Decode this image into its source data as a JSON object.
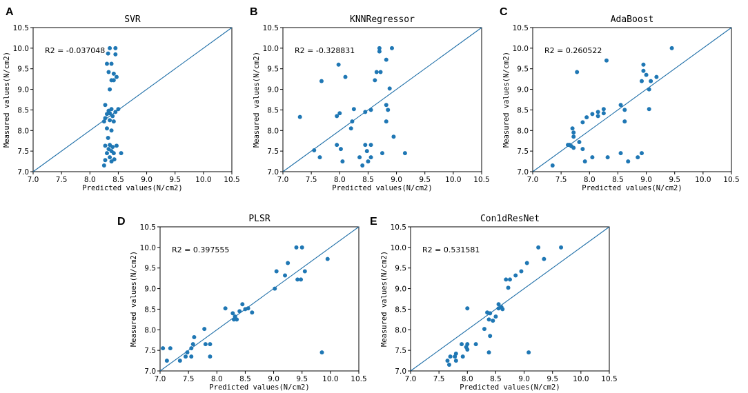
{
  "chart_data": [
    {
      "panel": "A",
      "type": "scatter",
      "title": "SVR",
      "xlabel": "Predicted values(N/cm2)",
      "ylabel": "Measured values(N/cm2)",
      "annotation": "R2 = -0.037048",
      "xlim": [
        7.0,
        10.5
      ],
      "ylim": [
        7.0,
        10.5
      ],
      "xticks": [
        "7.0",
        "7.5",
        "8.0",
        "8.5",
        "9.0",
        "9.5",
        "10.0",
        "10.5"
      ],
      "yticks": [
        "7.0",
        "7.5",
        "8.0",
        "8.5",
        "9.0",
        "9.5",
        "10.0",
        "10.5"
      ],
      "reference_line": "y = x",
      "points": [
        [
          8.35,
          10.0
        ],
        [
          8.45,
          10.0
        ],
        [
          8.32,
          9.87
        ],
        [
          8.45,
          9.85
        ],
        [
          8.3,
          9.62
        ],
        [
          8.38,
          9.62
        ],
        [
          8.33,
          9.42
        ],
        [
          8.42,
          9.38
        ],
        [
          8.47,
          9.3
        ],
        [
          8.38,
          9.22
        ],
        [
          8.42,
          9.22
        ],
        [
          8.35,
          9.0
        ],
        [
          8.27,
          8.62
        ],
        [
          8.38,
          8.52
        ],
        [
          8.33,
          8.48
        ],
        [
          8.45,
          8.45
        ],
        [
          8.5,
          8.52
        ],
        [
          8.3,
          8.4
        ],
        [
          8.35,
          8.42
        ],
        [
          8.4,
          8.35
        ],
        [
          8.27,
          8.3
        ],
        [
          8.35,
          8.25
        ],
        [
          8.42,
          8.22
        ],
        [
          8.25,
          8.22
        ],
        [
          8.3,
          8.05
        ],
        [
          8.38,
          8.0
        ],
        [
          8.32,
          7.82
        ],
        [
          8.35,
          7.65
        ],
        [
          8.27,
          7.63
        ],
        [
          8.4,
          7.6
        ],
        [
          8.47,
          7.63
        ],
        [
          8.33,
          7.55
        ],
        [
          8.38,
          7.5
        ],
        [
          8.3,
          7.45
        ],
        [
          8.42,
          7.45
        ],
        [
          8.55,
          7.45
        ],
        [
          8.35,
          7.35
        ],
        [
          8.43,
          7.3
        ],
        [
          8.27,
          7.28
        ],
        [
          8.38,
          7.25
        ],
        [
          8.25,
          7.15
        ]
      ]
    },
    {
      "panel": "B",
      "type": "scatter",
      "title": "KNNRegressor",
      "xlabel": "Predicted values(N/cm2)",
      "ylabel": "Measured values(N/cm2)",
      "annotation": "R2 = -0.328831",
      "xlim": [
        7.0,
        10.5
      ],
      "ylim": [
        7.0,
        10.5
      ],
      "xticks": [
        "7.0",
        "7.5",
        "8.0",
        "8.5",
        "9.0",
        "9.5",
        "10.0",
        "10.5"
      ],
      "yticks": [
        "7.0",
        "7.5",
        "8.0",
        "8.5",
        "9.0",
        "9.5",
        "10.0",
        "10.5"
      ],
      "reference_line": "y = x",
      "points": [
        [
          8.7,
          10.0
        ],
        [
          8.92,
          10.0
        ],
        [
          8.7,
          9.92
        ],
        [
          8.82,
          9.72
        ],
        [
          7.98,
          9.6
        ],
        [
          8.65,
          9.42
        ],
        [
          8.72,
          9.42
        ],
        [
          8.1,
          9.3
        ],
        [
          8.62,
          9.22
        ],
        [
          7.68,
          9.2
        ],
        [
          8.88,
          9.02
        ],
        [
          8.82,
          8.62
        ],
        [
          8.85,
          8.5
        ],
        [
          8.25,
          8.52
        ],
        [
          8.45,
          8.45
        ],
        [
          8.55,
          8.5
        ],
        [
          8.0,
          8.42
        ],
        [
          7.95,
          8.35
        ],
        [
          7.3,
          8.33
        ],
        [
          8.22,
          8.22
        ],
        [
          8.82,
          8.22
        ],
        [
          8.2,
          8.05
        ],
        [
          8.95,
          7.85
        ],
        [
          7.95,
          7.65
        ],
        [
          8.45,
          7.65
        ],
        [
          8.55,
          7.65
        ],
        [
          8.02,
          7.55
        ],
        [
          7.55,
          7.52
        ],
        [
          8.48,
          7.5
        ],
        [
          8.75,
          7.45
        ],
        [
          9.15,
          7.45
        ],
        [
          7.65,
          7.35
        ],
        [
          8.35,
          7.35
        ],
        [
          8.55,
          7.35
        ],
        [
          8.05,
          7.25
        ],
        [
          8.5,
          7.25
        ],
        [
          8.4,
          7.15
        ]
      ]
    },
    {
      "panel": "C",
      "type": "scatter",
      "title": "AdaBoost",
      "xlabel": "Predicted values(N/cm2)",
      "ylabel": "Measured values(N/cm2)",
      "annotation": "R2 = 0.260522",
      "xlim": [
        7.0,
        10.5
      ],
      "ylim": [
        7.0,
        10.5
      ],
      "xticks": [
        "7.0",
        "7.5",
        "8.0",
        "8.5",
        "9.0",
        "9.5",
        "10.0",
        "10.5"
      ],
      "yticks": [
        "7.0",
        "7.5",
        "8.0",
        "8.5",
        "9.0",
        "9.5",
        "10.0",
        "10.5"
      ],
      "reference_line": "y = x",
      "points": [
        [
          9.45,
          10.0
        ],
        [
          8.3,
          9.7
        ],
        [
          8.95,
          9.6
        ],
        [
          8.95,
          9.45
        ],
        [
          7.78,
          9.42
        ],
        [
          9.0,
          9.35
        ],
        [
          9.18,
          9.3
        ],
        [
          9.08,
          9.2
        ],
        [
          8.92,
          9.2
        ],
        [
          9.05,
          9.0
        ],
        [
          8.55,
          8.62
        ],
        [
          8.25,
          8.52
        ],
        [
          8.62,
          8.5
        ],
        [
          8.15,
          8.45
        ],
        [
          8.25,
          8.42
        ],
        [
          8.05,
          8.4
        ],
        [
          8.15,
          8.35
        ],
        [
          7.95,
          8.32
        ],
        [
          8.62,
          8.22
        ],
        [
          7.88,
          8.2
        ],
        [
          9.05,
          8.52
        ],
        [
          7.7,
          8.05
        ],
        [
          7.72,
          7.95
        ],
        [
          7.72,
          7.85
        ],
        [
          7.82,
          7.72
        ],
        [
          7.62,
          7.65
        ],
        [
          7.65,
          7.65
        ],
        [
          7.68,
          7.62
        ],
        [
          7.72,
          7.58
        ],
        [
          7.88,
          7.55
        ],
        [
          8.55,
          7.45
        ],
        [
          8.92,
          7.45
        ],
        [
          8.05,
          7.35
        ],
        [
          8.85,
          7.35
        ],
        [
          8.32,
          7.35
        ],
        [
          7.92,
          7.25
        ],
        [
          8.68,
          7.25
        ],
        [
          7.35,
          7.15
        ]
      ]
    },
    {
      "panel": "D",
      "type": "scatter",
      "title": "PLSR",
      "xlabel": "Predicted values(N/cm2)",
      "ylabel": "Measured values(N/cm2)",
      "annotation": "R2 = 0.397555",
      "xlim": [
        7.0,
        10.5
      ],
      "ylim": [
        7.0,
        10.5
      ],
      "xticks": [
        "7.0",
        "7.5",
        "8.0",
        "8.5",
        "9.0",
        "9.5",
        "10.0",
        "10.5"
      ],
      "yticks": [
        "7.0",
        "7.5",
        "8.0",
        "8.5",
        "9.0",
        "9.5",
        "10.0",
        "10.5"
      ],
      "reference_line": "y = x",
      "points": [
        [
          9.4,
          10.0
        ],
        [
          9.5,
          10.0
        ],
        [
          9.95,
          9.72
        ],
        [
          9.25,
          9.62
        ],
        [
          9.05,
          9.42
        ],
        [
          9.2,
          9.32
        ],
        [
          9.55,
          9.42
        ],
        [
          9.42,
          9.22
        ],
        [
          9.48,
          9.22
        ],
        [
          9.02,
          9.0
        ],
        [
          8.15,
          8.52
        ],
        [
          8.45,
          8.62
        ],
        [
          8.55,
          8.52
        ],
        [
          8.5,
          8.5
        ],
        [
          8.4,
          8.45
        ],
        [
          8.28,
          8.4
        ],
        [
          8.32,
          8.32
        ],
        [
          8.62,
          8.42
        ],
        [
          8.3,
          8.25
        ],
        [
          8.35,
          8.25
        ],
        [
          7.78,
          8.02
        ],
        [
          7.6,
          7.82
        ],
        [
          7.8,
          7.65
        ],
        [
          7.58,
          7.65
        ],
        [
          7.88,
          7.65
        ],
        [
          7.05,
          7.55
        ],
        [
          7.18,
          7.55
        ],
        [
          7.55,
          7.55
        ],
        [
          7.48,
          7.45
        ],
        [
          7.45,
          7.35
        ],
        [
          7.55,
          7.35
        ],
        [
          7.88,
          7.35
        ],
        [
          7.35,
          7.25
        ],
        [
          7.12,
          7.25
        ],
        [
          9.85,
          7.45
        ]
      ]
    },
    {
      "panel": "E",
      "type": "scatter",
      "title": "Con1dResNet",
      "xlabel": "Predicted values(N/cm2)",
      "ylabel": "Measured values(N/cm2)",
      "annotation": "R2 = 0.531581",
      "xlim": [
        7.0,
        10.5
      ],
      "ylim": [
        7.0,
        10.5
      ],
      "xticks": [
        "7.0",
        "7.5",
        "8.0",
        "8.5",
        "9.0",
        "9.5",
        "10.0",
        "10.5"
      ],
      "yticks": [
        "7.0",
        "7.5",
        "8.0",
        "8.5",
        "9.0",
        "9.5",
        "10.0",
        "10.5"
      ],
      "reference_line": "y = x",
      "points": [
        [
          9.25,
          10.0
        ],
        [
          9.65,
          10.0
        ],
        [
          9.35,
          9.72
        ],
        [
          9.05,
          9.62
        ],
        [
          8.95,
          9.42
        ],
        [
          8.85,
          9.32
        ],
        [
          8.75,
          9.22
        ],
        [
          8.68,
          9.22
        ],
        [
          8.72,
          9.02
        ],
        [
          8.55,
          8.62
        ],
        [
          8.6,
          8.55
        ],
        [
          8.55,
          8.52
        ],
        [
          8.62,
          8.5
        ],
        [
          8.0,
          8.52
        ],
        [
          8.35,
          8.42
        ],
        [
          8.4,
          8.4
        ],
        [
          8.5,
          8.32
        ],
        [
          8.38,
          8.25
        ],
        [
          8.45,
          8.22
        ],
        [
          8.3,
          8.02
        ],
        [
          8.4,
          7.85
        ],
        [
          7.9,
          7.65
        ],
        [
          8.0,
          7.65
        ],
        [
          8.15,
          7.65
        ],
        [
          7.98,
          7.58
        ],
        [
          8.0,
          7.52
        ],
        [
          7.8,
          7.42
        ],
        [
          8.38,
          7.45
        ],
        [
          9.08,
          7.45
        ],
        [
          7.7,
          7.35
        ],
        [
          7.78,
          7.35
        ],
        [
          7.92,
          7.35
        ],
        [
          7.65,
          7.25
        ],
        [
          7.8,
          7.25
        ],
        [
          7.68,
          7.15
        ]
      ]
    }
  ]
}
